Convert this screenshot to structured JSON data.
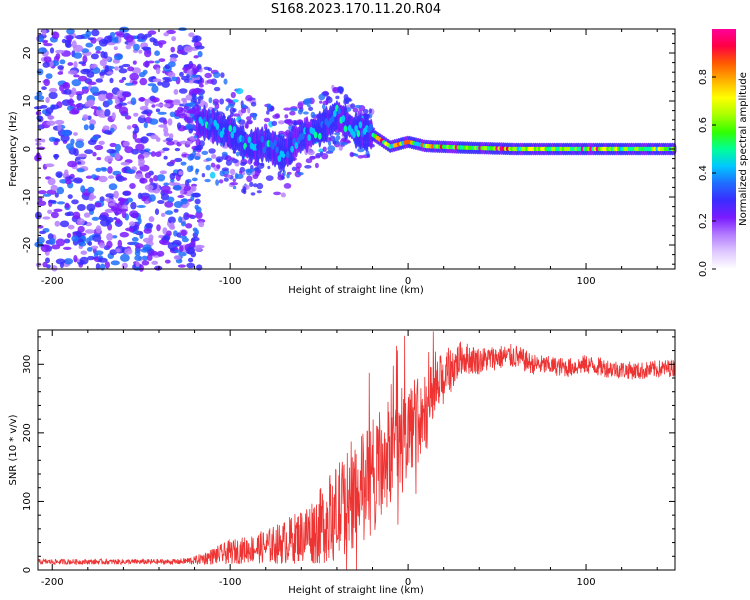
{
  "title": "S168.2023.170.11.20.R04",
  "colors": {
    "snr_line": "#ee3333",
    "background": "#ffffff",
    "colormap": [
      "#ffffff",
      "#dfc9ff",
      "#b47cff",
      "#7a1bff",
      "#3a2cff",
      "#1f6dff",
      "#00c8ff",
      "#00ff96",
      "#33ff00",
      "#aaff00",
      "#ffff00",
      "#ffb000",
      "#ff5a00",
      "#ff0044",
      "#ff0099"
    ]
  },
  "chart_data": [
    {
      "type": "heatmap",
      "xlabel": "Height of straight line (km)",
      "ylabel": "Frequency (Hz)",
      "xlim": [
        -208,
        150
      ],
      "ylim": [
        -25,
        25
      ],
      "xticks": [
        -200,
        -100,
        0,
        100
      ],
      "yticks": [
        -20,
        -10,
        0,
        10,
        20
      ],
      "colorbar": {
        "label": "Normalized spectral amplitude",
        "range": [
          0,
          1
        ],
        "ticks": [
          "0.0",
          "0.2",
          "0.4",
          "0.6",
          "0.8"
        ]
      },
      "ridge_frequency": [
        {
          "x": -115,
          "y": 5.5
        },
        {
          "x": -100,
          "y": 3.5
        },
        {
          "x": -90,
          "y": 0.5
        },
        {
          "x": -80,
          "y": 1
        },
        {
          "x": -70,
          "y": -1
        },
        {
          "x": -60,
          "y": 2.5
        },
        {
          "x": -50,
          "y": 4
        },
        {
          "x": -40,
          "y": 7
        },
        {
          "x": -35,
          "y": 5.5
        },
        {
          "x": -30,
          "y": 4
        },
        {
          "x": -20,
          "y": 3
        },
        {
          "x": -10,
          "y": 0.5
        },
        {
          "x": 0,
          "y": 1.5
        },
        {
          "x": 10,
          "y": 0.6
        },
        {
          "x": 30,
          "y": 0.3
        },
        {
          "x": 60,
          "y": 0
        },
        {
          "x": 100,
          "y": 0
        },
        {
          "x": 150,
          "y": 0
        }
      ]
    },
    {
      "type": "line",
      "xlabel": "Height of straight line (km)",
      "ylabel": "SNR (10 * v/v)",
      "xlim": [
        -208,
        150
      ],
      "ylim": [
        0,
        350
      ],
      "xticks": [
        -200,
        -100,
        0,
        100
      ],
      "yticks": [
        0,
        100,
        200,
        300
      ],
      "envelope": {
        "x": [
          -208,
          -130,
          -120,
          -110,
          -100,
          -90,
          -80,
          -70,
          -60,
          -50,
          -40,
          -30,
          -20,
          -10,
          0,
          10,
          20,
          30,
          40,
          50,
          60,
          70,
          80,
          90,
          100,
          110,
          120,
          130,
          140,
          150
        ],
        "mean": [
          12,
          12,
          14,
          20,
          26,
          30,
          34,
          40,
          50,
          62,
          85,
          110,
          135,
          175,
          205,
          230,
          280,
          310,
          305,
          310,
          312,
          300,
          298,
          295,
          300,
          295,
          292,
          290,
          293,
          295
        ],
        "spread": [
          4,
          4,
          6,
          12,
          18,
          20,
          25,
          32,
          40,
          55,
          70,
          80,
          85,
          80,
          70,
          60,
          40,
          25,
          20,
          18,
          18,
          15,
          14,
          14,
          14,
          14,
          13,
          13,
          13,
          13
        ]
      }
    }
  ]
}
